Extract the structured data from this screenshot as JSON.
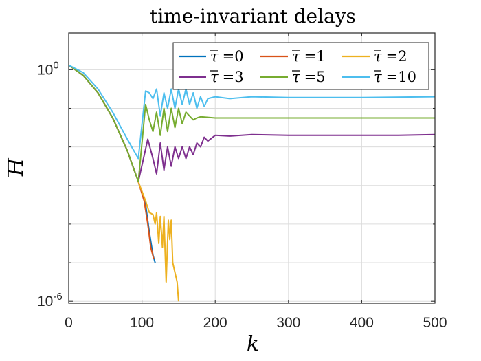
{
  "chart_data": {
    "type": "line",
    "title": "time-invariant delays",
    "xlabel": "k",
    "ylabel": "H",
    "ylabel_overline": true,
    "xlim": [
      0,
      500
    ],
    "ylim_log10": [
      -6.05,
      0.95
    ],
    "yscale": "log",
    "grid": true,
    "legend_position": "top-right",
    "x_ticks": [
      0,
      100,
      200,
      300,
      400,
      500
    ],
    "x_tick_labels": [
      "0",
      "100",
      "200",
      "300",
      "400",
      "500"
    ],
    "y_ticks_log10": [
      0,
      -6
    ],
    "y_tick_labels": [
      {
        "base": "10",
        "exp": "0"
      },
      {
        "base": "10",
        "exp": "-6"
      }
    ],
    "series": [
      {
        "name": "τ̄ =0",
        "legend_tau": "τ",
        "legend_value": "=0",
        "color": "#0072BD",
        "points": [
          [
            0,
            0.12
          ],
          [
            20,
            -0.15
          ],
          [
            40,
            -0.6
          ],
          [
            60,
            -1.25
          ],
          [
            80,
            -2.1
          ],
          [
            95,
            -2.9
          ],
          [
            105,
            -3.5
          ],
          [
            110,
            -4.2
          ],
          [
            115,
            -4.8
          ],
          [
            118,
            -5.0
          ]
        ]
      },
      {
        "name": "τ̄ =1",
        "legend_tau": "τ",
        "legend_value": "=1",
        "color": "#D95319",
        "points": [
          [
            0,
            0.12
          ],
          [
            20,
            -0.15
          ],
          [
            40,
            -0.6
          ],
          [
            60,
            -1.25
          ],
          [
            80,
            -2.1
          ],
          [
            95,
            -2.9
          ],
          [
            103,
            -3.4
          ],
          [
            108,
            -4.0
          ],
          [
            112,
            -4.6
          ],
          [
            116,
            -4.9
          ]
        ]
      },
      {
        "name": "τ̄ =2",
        "legend_tau": "τ",
        "legend_value": "=2",
        "color": "#EDB120",
        "points": [
          [
            0,
            0.12
          ],
          [
            20,
            -0.15
          ],
          [
            40,
            -0.6
          ],
          [
            60,
            -1.25
          ],
          [
            80,
            -2.1
          ],
          [
            95,
            -2.9
          ],
          [
            105,
            -3.4
          ],
          [
            110,
            -3.7
          ],
          [
            115,
            -3.75
          ],
          [
            118,
            -4.0
          ],
          [
            120,
            -3.7
          ],
          [
            123,
            -4.5
          ],
          [
            125,
            -3.8
          ],
          [
            128,
            -4.6
          ],
          [
            130,
            -3.8
          ],
          [
            133,
            -5.5
          ],
          [
            136,
            -3.9
          ],
          [
            138,
            -4.4
          ],
          [
            140,
            -3.9
          ],
          [
            142,
            -5.0
          ],
          [
            148,
            -5.5
          ],
          [
            150,
            -6.0
          ]
        ]
      },
      {
        "name": "τ̄ =3",
        "legend_tau": "τ",
        "legend_value": "=3",
        "color": "#7E2F8E",
        "points": [
          [
            0,
            0.12
          ],
          [
            20,
            -0.15
          ],
          [
            40,
            -0.6
          ],
          [
            60,
            -1.25
          ],
          [
            80,
            -2.1
          ],
          [
            95,
            -2.9
          ],
          [
            108,
            -1.8
          ],
          [
            115,
            -2.3
          ],
          [
            120,
            -2.7
          ],
          [
            125,
            -1.9
          ],
          [
            130,
            -2.6
          ],
          [
            135,
            -2.0
          ],
          [
            140,
            -2.5
          ],
          [
            145,
            -2.0
          ],
          [
            150,
            -2.3
          ],
          [
            155,
            -2.0
          ],
          [
            160,
            -2.3
          ],
          [
            165,
            -2.0
          ],
          [
            170,
            -2.2
          ],
          [
            175,
            -1.9
          ],
          [
            180,
            -2.0
          ],
          [
            185,
            -1.75
          ],
          [
            190,
            -1.85
          ],
          [
            200,
            -1.7
          ],
          [
            220,
            -1.72
          ],
          [
            250,
            -1.68
          ],
          [
            300,
            -1.7
          ],
          [
            350,
            -1.7
          ],
          [
            400,
            -1.7
          ],
          [
            450,
            -1.7
          ],
          [
            500,
            -1.68
          ]
        ]
      },
      {
        "name": "τ̄ =5",
        "legend_tau": "τ",
        "legend_value": "=5",
        "color": "#77AC30",
        "points": [
          [
            0,
            0.12
          ],
          [
            20,
            -0.15
          ],
          [
            40,
            -0.6
          ],
          [
            60,
            -1.25
          ],
          [
            80,
            -2.1
          ],
          [
            95,
            -2.9
          ],
          [
            105,
            -0.9
          ],
          [
            110,
            -1.3
          ],
          [
            115,
            -1.6
          ],
          [
            120,
            -1.1
          ],
          [
            125,
            -1.7
          ],
          [
            130,
            -1.0
          ],
          [
            135,
            -1.6
          ],
          [
            140,
            -1.0
          ],
          [
            145,
            -1.5
          ],
          [
            150,
            -1.0
          ],
          [
            155,
            -1.4
          ],
          [
            160,
            -1.1
          ],
          [
            170,
            -1.3
          ],
          [
            175,
            -1.25
          ],
          [
            180,
            -1.22
          ],
          [
            200,
            -1.25
          ],
          [
            250,
            -1.25
          ],
          [
            300,
            -1.25
          ],
          [
            400,
            -1.25
          ],
          [
            500,
            -1.25
          ]
        ]
      },
      {
        "name": "τ̄ =10",
        "legend_tau": "τ",
        "legend_value": "=10",
        "color": "#4DBEEE",
        "points": [
          [
            0,
            0.12
          ],
          [
            20,
            -0.08
          ],
          [
            40,
            -0.5
          ],
          [
            60,
            -1.1
          ],
          [
            80,
            -1.8
          ],
          [
            95,
            -2.3
          ],
          [
            105,
            -0.55
          ],
          [
            110,
            -0.6
          ],
          [
            115,
            -0.75
          ],
          [
            120,
            -0.5
          ],
          [
            125,
            -1.2
          ],
          [
            130,
            -0.6
          ],
          [
            135,
            -1.0
          ],
          [
            140,
            -0.5
          ],
          [
            145,
            -1.0
          ],
          [
            150,
            -0.5
          ],
          [
            155,
            -0.9
          ],
          [
            160,
            -0.5
          ],
          [
            165,
            -0.9
          ],
          [
            170,
            -0.6
          ],
          [
            175,
            -1.0
          ],
          [
            180,
            -0.7
          ],
          [
            185,
            -0.95
          ],
          [
            190,
            -0.75
          ],
          [
            200,
            -0.7
          ],
          [
            220,
            -0.75
          ],
          [
            250,
            -0.7
          ],
          [
            300,
            -0.72
          ],
          [
            400,
            -0.72
          ],
          [
            500,
            -0.7
          ]
        ]
      }
    ]
  }
}
